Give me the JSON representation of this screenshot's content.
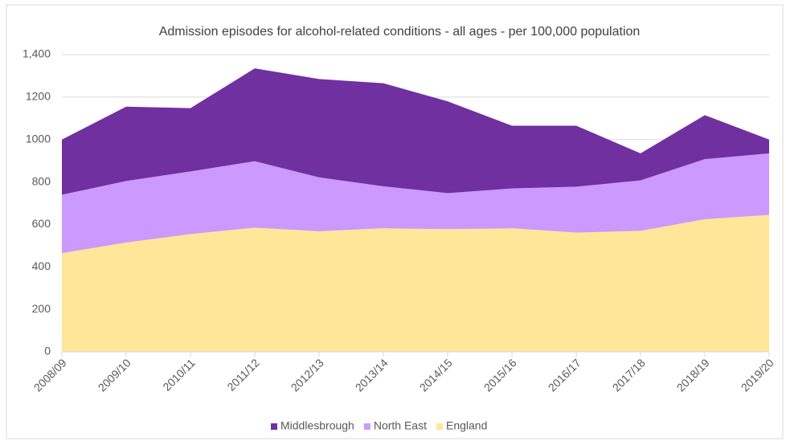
{
  "chart_data": {
    "type": "area",
    "title": "Admission episodes for alcohol-related conditions - all ages - per 100,000 population",
    "categories": [
      "2008/09",
      "2009/10",
      "2010/11",
      "2011/12",
      "2012/13",
      "2013/14",
      "2014/15",
      "2015/16",
      "2016/17",
      "2017/18",
      "2018/19",
      "2019/20"
    ],
    "series": [
      {
        "name": "Middlesbrough",
        "color": "#7030a0",
        "values": [
          1000,
          1155,
          1148,
          1335,
          1285,
          1265,
          1180,
          1065,
          1065,
          935,
          1115,
          1000
        ]
      },
      {
        "name": "North East",
        "color": "#cc99ff",
        "values": [
          740,
          805,
          850,
          898,
          822,
          780,
          748,
          770,
          778,
          808,
          908,
          935
        ]
      },
      {
        "name": "England",
        "color": "#ffe699",
        "values": [
          465,
          515,
          555,
          585,
          568,
          582,
          578,
          582,
          562,
          570,
          625,
          645
        ]
      }
    ],
    "ylim": [
      0,
      1400
    ],
    "yticks": [
      0,
      200,
      400,
      600,
      800,
      1000,
      1200,
      {
        "value": 1400,
        "label": "1,400"
      }
    ],
    "grid": true,
    "legend": "bottom"
  }
}
